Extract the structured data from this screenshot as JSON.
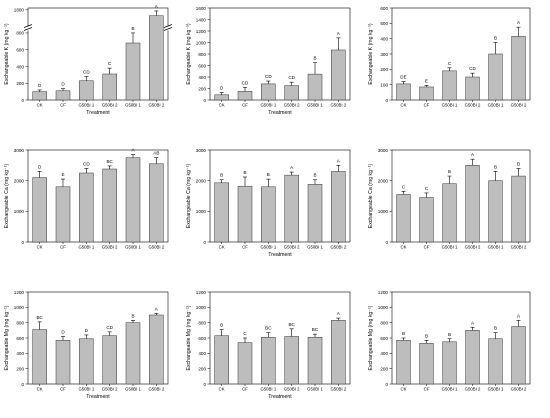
{
  "chart_data": [
    {
      "type": "bar",
      "id": "k1",
      "ylabel": "Exchangeable K (mg kg⁻¹)",
      "xlabel": "Treatment",
      "categories": [
        "CK",
        "CF",
        "G50BI 1",
        "G50BI 2",
        "G50BI 1",
        "G50BI 2"
      ],
      "values": [
        100,
        110,
        230,
        310,
        680,
        1480
      ],
      "errors": [
        20,
        25,
        50,
        70,
        120,
        260
      ],
      "letters": [
        "D",
        "D",
        "CD",
        "C",
        "B",
        "A"
      ],
      "ylim": [
        0,
        1900
      ],
      "yticks": [
        0,
        200,
        400,
        600,
        800,
        1800
      ],
      "yticklabels": [
        "0",
        "200",
        "400",
        "600",
        "800",
        "1800"
      ],
      "axis_break": true
    },
    {
      "type": "bar",
      "id": "k2",
      "ylabel": "Exchangeable K (mg kg⁻¹)",
      "xlabel": "Treatment",
      "categories": [
        "CK",
        "CF",
        "G50BI 1",
        "G50BI 2",
        "G50BI 1",
        "G50BI 2"
      ],
      "values": [
        90,
        150,
        280,
        250,
        450,
        870
      ],
      "errors": [
        40,
        70,
        50,
        60,
        200,
        210
      ],
      "letters": [
        "D",
        "CD",
        "CD",
        "CD",
        "B",
        "A"
      ],
      "ylim": [
        0,
        1600
      ],
      "yticks": [
        0,
        200,
        400,
        600,
        800,
        1000,
        1200,
        1400,
        1600
      ],
      "yticklabels": [
        "0",
        "200",
        "400",
        "600",
        "800",
        "1000",
        "1200",
        "1400",
        "1600"
      ]
    },
    {
      "type": "bar",
      "id": "k3",
      "ylabel": "Exchangeable K (mg kg⁻¹)",
      "xlabel": "",
      "categories": [
        "CK",
        "CF",
        "G50BI 1",
        "G50BI 2",
        "G50BI 1",
        "G50BI 2"
      ],
      "values": [
        105,
        85,
        190,
        150,
        300,
        415
      ],
      "errors": [
        15,
        10,
        20,
        25,
        75,
        60
      ],
      "letters": [
        "DE",
        "E",
        "C",
        "CD",
        "B",
        "A"
      ],
      "ylim": [
        0,
        600
      ],
      "yticks": [
        0,
        100,
        200,
        300,
        400,
        500,
        600
      ],
      "yticklabels": [
        "0",
        "100",
        "200",
        "300",
        "400",
        "500",
        "600"
      ]
    },
    {
      "type": "bar",
      "id": "ca1",
      "ylabel": "Exchangeable Ca (mg kg⁻¹)",
      "xlabel": "",
      "categories": [
        "CK",
        "CF",
        "G50BI 1",
        "G50BI 2",
        "G50BI 1",
        "G50BI 2"
      ],
      "values": [
        2100,
        1800,
        2250,
        2380,
        2750,
        2550
      ],
      "errors": [
        200,
        250,
        150,
        100,
        100,
        200
      ],
      "letters": [
        "D",
        "E",
        "CD",
        "BC",
        "A",
        "AB"
      ],
      "ylim": [
        0,
        3000
      ],
      "yticks": [
        0,
        1000,
        2000,
        3000
      ],
      "yticklabels": [
        "0",
        "1000",
        "2000",
        "3000"
      ]
    },
    {
      "type": "bar",
      "id": "ca2",
      "ylabel": "Exchangeable Ca (mg kg⁻¹)",
      "xlabel": "Treatment",
      "categories": [
        "CK",
        "CF",
        "G50BI 1",
        "G50BI 2",
        "G50BI 1",
        "G50BI 2"
      ],
      "values": [
        1930,
        1820,
        1800,
        2180,
        1880,
        2300
      ],
      "errors": [
        100,
        300,
        250,
        100,
        150,
        200
      ],
      "letters": [
        "B",
        "B",
        "B",
        "A",
        "B",
        "A"
      ],
      "ylim": [
        0,
        3000
      ],
      "yticks": [
        0,
        1000,
        2000,
        3000
      ],
      "yticklabels": [
        "0",
        "1000",
        "2000",
        "3000"
      ]
    },
    {
      "type": "bar",
      "id": "ca3",
      "ylabel": "Exchangeable Ca (mg kg⁻¹)",
      "xlabel": "",
      "categories": [
        "CK",
        "CF",
        "G50BI 1",
        "G50BI 2",
        "G50BI 1",
        "G50BI 2"
      ],
      "values": [
        1550,
        1450,
        1900,
        2500,
        2000,
        2150
      ],
      "errors": [
        100,
        150,
        250,
        200,
        300,
        250
      ],
      "letters": [
        "C",
        "C",
        "B",
        "A",
        "B",
        "B"
      ],
      "ylim": [
        0,
        3000
      ],
      "yticks": [
        0,
        1000,
        2000,
        3000
      ],
      "yticklabels": [
        "0",
        "1000",
        "2000",
        "3000"
      ]
    },
    {
      "type": "bar",
      "id": "mg1",
      "ylabel": "Exchangeable Mg (mg kg⁻¹)",
      "xlabel": "Treatment",
      "categories": [
        "CK",
        "CF",
        "G50BI 1",
        "G50BI 2",
        "G50BI 1",
        "G50BI 2"
      ],
      "values": [
        710,
        570,
        590,
        630,
        800,
        900
      ],
      "errors": [
        100,
        50,
        50,
        50,
        30,
        20
      ],
      "letters": [
        "BC",
        "D",
        "D",
        "CD",
        "B",
        "A"
      ],
      "ylim": [
        0,
        1200
      ],
      "yticks": [
        0,
        200,
        400,
        600,
        800,
        1000,
        1200
      ],
      "yticklabels": [
        "0",
        "200",
        "400",
        "600",
        "800",
        "1000",
        "1200"
      ]
    },
    {
      "type": "bar",
      "id": "mg2",
      "ylabel": "Exchangeable Mg (mg kg⁻¹)",
      "xlabel": "Treatment",
      "categories": [
        "CK",
        "CF",
        "G50BI 1",
        "G50BI 2",
        "G50BI 1",
        "G50BI 2"
      ],
      "values": [
        630,
        540,
        610,
        620,
        610,
        830
      ],
      "errors": [
        80,
        60,
        60,
        100,
        40,
        30
      ],
      "letters": [
        "B",
        "C",
        "BC",
        "BC",
        "BC",
        "A"
      ],
      "ylim": [
        0,
        1200
      ],
      "yticks": [
        0,
        200,
        400,
        600,
        800,
        1000,
        1200
      ],
      "yticklabels": [
        "0",
        "200",
        "400",
        "600",
        "800",
        "1000",
        "1200"
      ]
    },
    {
      "type": "bar",
      "id": "mg3",
      "ylabel": "Exchangeable Mg (mg kg⁻¹)",
      "xlabel": "",
      "categories": [
        "CK",
        "CF",
        "G50BI 1",
        "G50BI 2",
        "G50BI 1",
        "G50BI 2"
      ],
      "values": [
        570,
        530,
        550,
        700,
        590,
        750
      ],
      "errors": [
        30,
        40,
        40,
        40,
        80,
        80
      ],
      "letters": [
        "B",
        "B",
        "B",
        "A",
        "B",
        "A"
      ],
      "ylim": [
        0,
        1200
      ],
      "yticks": [
        0,
        200,
        400,
        600,
        800,
        1000,
        1200
      ],
      "yticklabels": [
        "0",
        "200",
        "400",
        "600",
        "800",
        "1000",
        "1200"
      ]
    }
  ]
}
